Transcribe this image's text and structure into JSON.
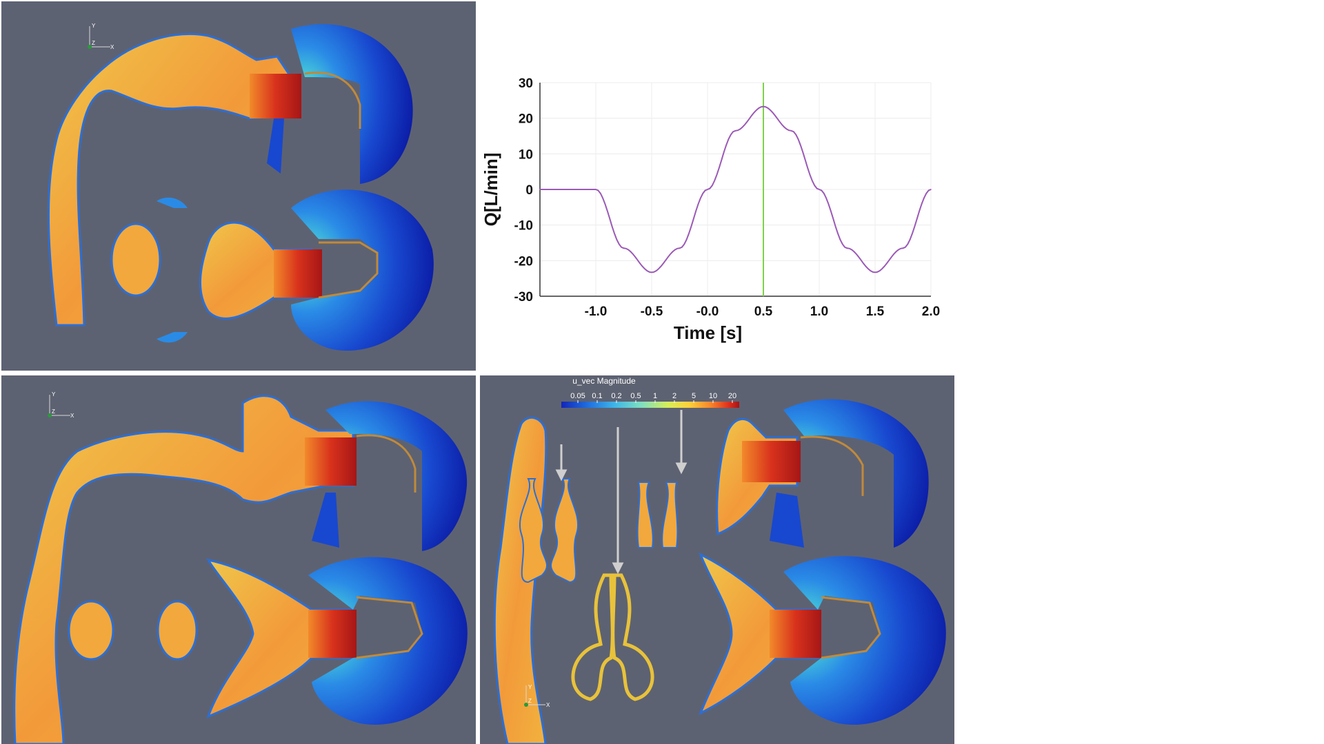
{
  "colors": {
    "panel_bg": "#5d6272",
    "series": "#9b59b6",
    "marker": "#7fd14a",
    "grid": "#ececec"
  },
  "panels": {
    "top_left": {
      "triad": {
        "y": "Y",
        "z": "Z",
        "x": "X"
      }
    },
    "bottom_left": {
      "triad": {
        "y": "Y",
        "z": "Z",
        "x": "X"
      }
    },
    "bottom_right": {
      "triad": {
        "y": "Y",
        "z": "Z",
        "x": "X"
      },
      "colorbar": {
        "title": "u_vec Magnitude",
        "ticks": [
          "0.05",
          "0.1",
          "0.2",
          "0.5",
          "1",
          "2",
          "5",
          "10",
          "20"
        ],
        "colors": [
          "#1226b8",
          "#1f6fe0",
          "#3fb6e8",
          "#7fe0c0",
          "#d8ee58",
          "#fdd03a",
          "#f7852a",
          "#e0301e",
          "#a51414"
        ]
      }
    }
  },
  "chart_data": {
    "type": "line",
    "xlabel": "Time [s]",
    "ylabel": "Q[L/min]",
    "xlim": [
      -1.5,
      2.0
    ],
    "ylim": [
      -30,
      30
    ],
    "xticks": [
      "-1.0",
      "-0.5",
      "-0.0",
      "0.5",
      "1.0",
      "1.5",
      "2.0"
    ],
    "yticks": [
      "30",
      "20",
      "10",
      "0",
      "-10",
      "-20",
      "-30"
    ],
    "grid": true,
    "marker_x": 0.5,
    "series": [
      {
        "x": [
          -1.5,
          -1.0,
          -0.75,
          -0.5,
          -0.25,
          0.0,
          0.25,
          0.5,
          0.75,
          1.0,
          1.25,
          1.5,
          1.75,
          2.0
        ],
        "y": [
          0,
          0,
          -16.5,
          -23.3,
          -16.5,
          0,
          16.5,
          23.3,
          16.5,
          0,
          -16.5,
          -23.3,
          -16.5,
          0
        ]
      }
    ]
  }
}
